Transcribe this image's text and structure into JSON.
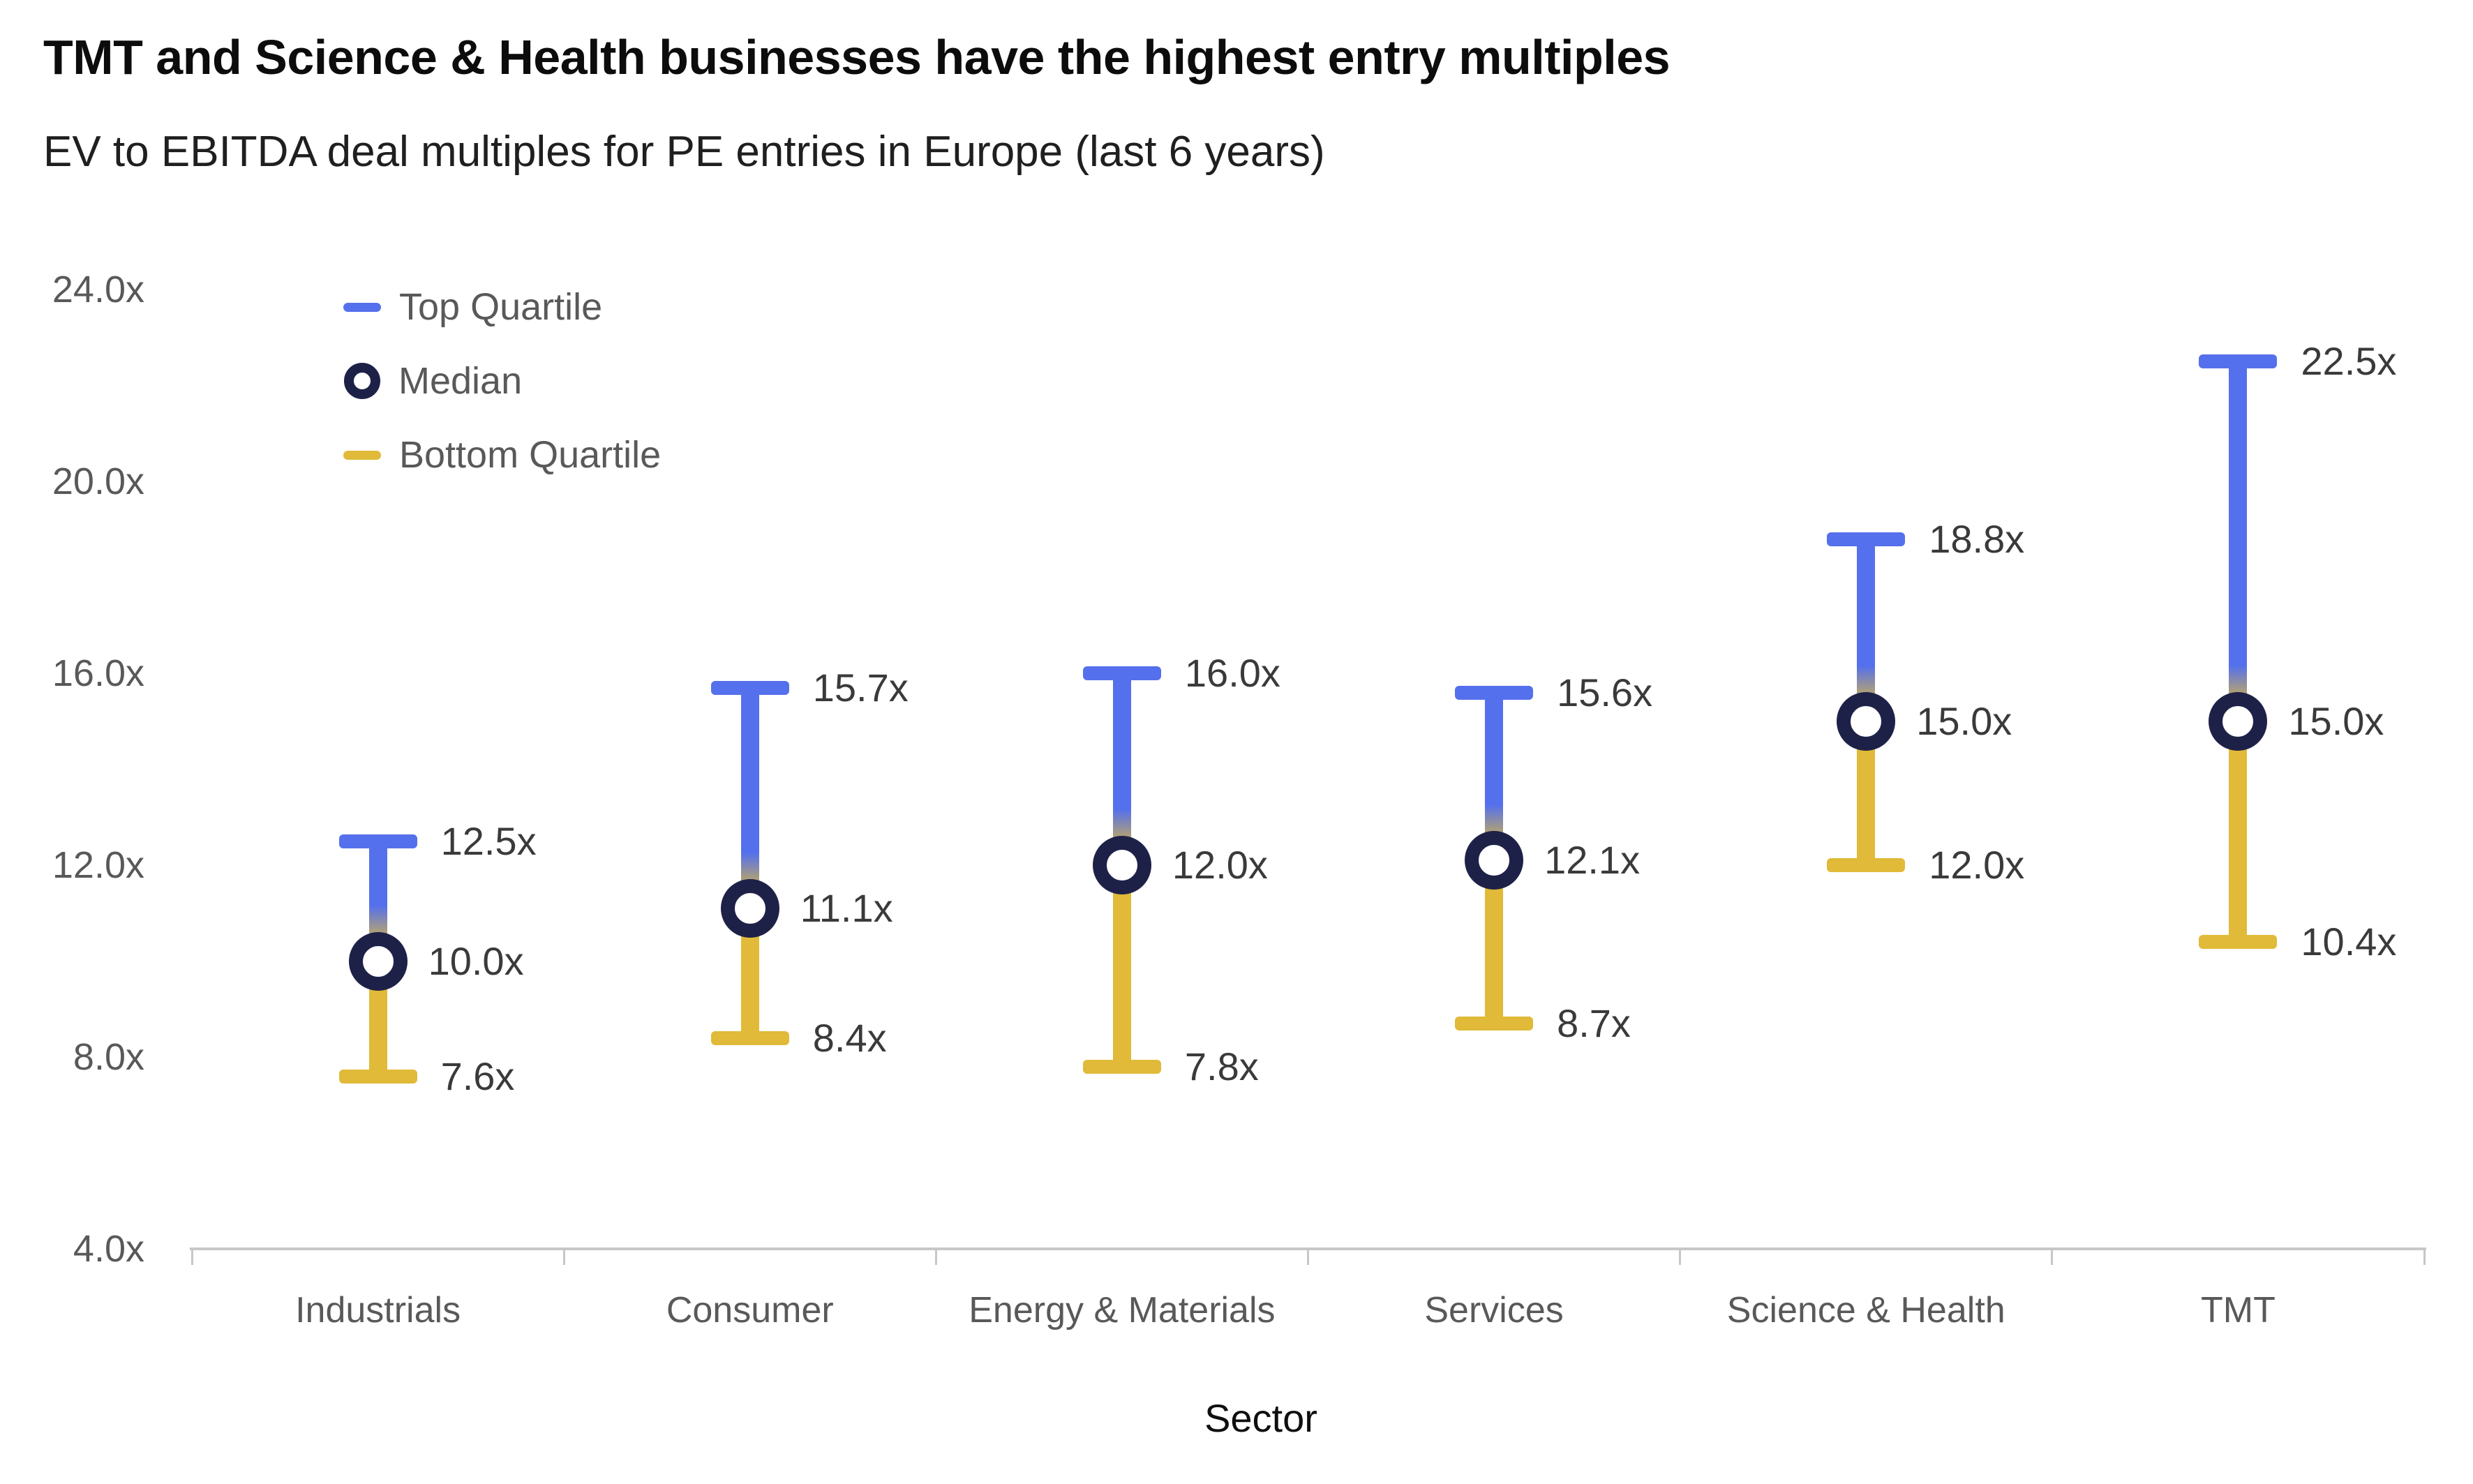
{
  "title": "TMT and Science & Health businesses have the highest entry multiples",
  "subtitle": "EV to EBITDA deal multiples for PE entries in Europe (last 6 years)",
  "colors": {
    "top_quartile": "#5570ec",
    "bottom_quartile": "#e0ba38",
    "median_ring": "#1e2147",
    "axis_line": "#c7c7c7"
  },
  "legend": [
    {
      "label": "Top Quartile",
      "marker": "dash",
      "color_key": "top_quartile"
    },
    {
      "label": "Median",
      "marker": "ring",
      "color_key": "median_ring"
    },
    {
      "label": "Bottom Quartile",
      "marker": "dash",
      "color_key": "bottom_quartile"
    }
  ],
  "chart_data": {
    "type": "bar",
    "subtype": "quartile-range",
    "title": "TMT and Science & Health businesses have the highest entry multiples",
    "subtitle": "EV to EBITDA deal multiples for PE entries in Europe (last 6 years)",
    "categories": [
      "Industrials",
      "Consumer",
      "Energy & Materials",
      "Services",
      "Science & Health",
      "TMT"
    ],
    "series": [
      {
        "name": "Top Quartile",
        "values": [
          12.5,
          15.7,
          16.0,
          15.6,
          18.8,
          22.5
        ]
      },
      {
        "name": "Median",
        "values": [
          10.0,
          11.1,
          12.0,
          12.1,
          15.0,
          15.0
        ]
      },
      {
        "name": "Bottom Quartile",
        "values": [
          7.6,
          8.4,
          7.8,
          8.7,
          12.0,
          10.4
        ]
      }
    ],
    "sectors": [
      {
        "name": "Industrials",
        "top_quartile": 12.5,
        "median": 10.0,
        "bottom_quartile": 7.6,
        "labels": {
          "top": "12.5x",
          "median": "10.0x",
          "bottom": "7.6x"
        }
      },
      {
        "name": "Consumer",
        "top_quartile": 15.7,
        "median": 11.1,
        "bottom_quartile": 8.4,
        "labels": {
          "top": "15.7x",
          "median": "11.1x",
          "bottom": "8.4x"
        }
      },
      {
        "name": "Energy & Materials",
        "top_quartile": 16.0,
        "median": 12.0,
        "bottom_quartile": 7.8,
        "labels": {
          "top": "16.0x",
          "median": "12.0x",
          "bottom": "7.8x"
        }
      },
      {
        "name": "Services",
        "top_quartile": 15.6,
        "median": 12.1,
        "bottom_quartile": 8.7,
        "labels": {
          "top": "15.6x",
          "median": "12.1x",
          "bottom": "8.7x"
        }
      },
      {
        "name": "Science & Health",
        "top_quartile": 18.8,
        "median": 15.0,
        "bottom_quartile": 12.0,
        "labels": {
          "top": "18.8x",
          "median": "15.0x",
          "bottom": "12.0x"
        }
      },
      {
        "name": "TMT",
        "top_quartile": 22.5,
        "median": 15.0,
        "bottom_quartile": 10.4,
        "labels": {
          "top": "22.5x",
          "median": "15.0x",
          "bottom": "10.4x"
        }
      }
    ],
    "value_suffix": "x",
    "xlabel": "Sector",
    "ylabel": "",
    "ylim": [
      4.0,
      24.0
    ],
    "yticks": [
      24.0,
      20.0,
      16.0,
      12.0,
      8.0,
      4.0
    ],
    "ytick_labels": [
      "24.0x",
      "20.0x",
      "16.0x",
      "12.0x",
      "8.0x",
      "4.0x"
    ],
    "grid": false,
    "legend_position": "top-left"
  }
}
